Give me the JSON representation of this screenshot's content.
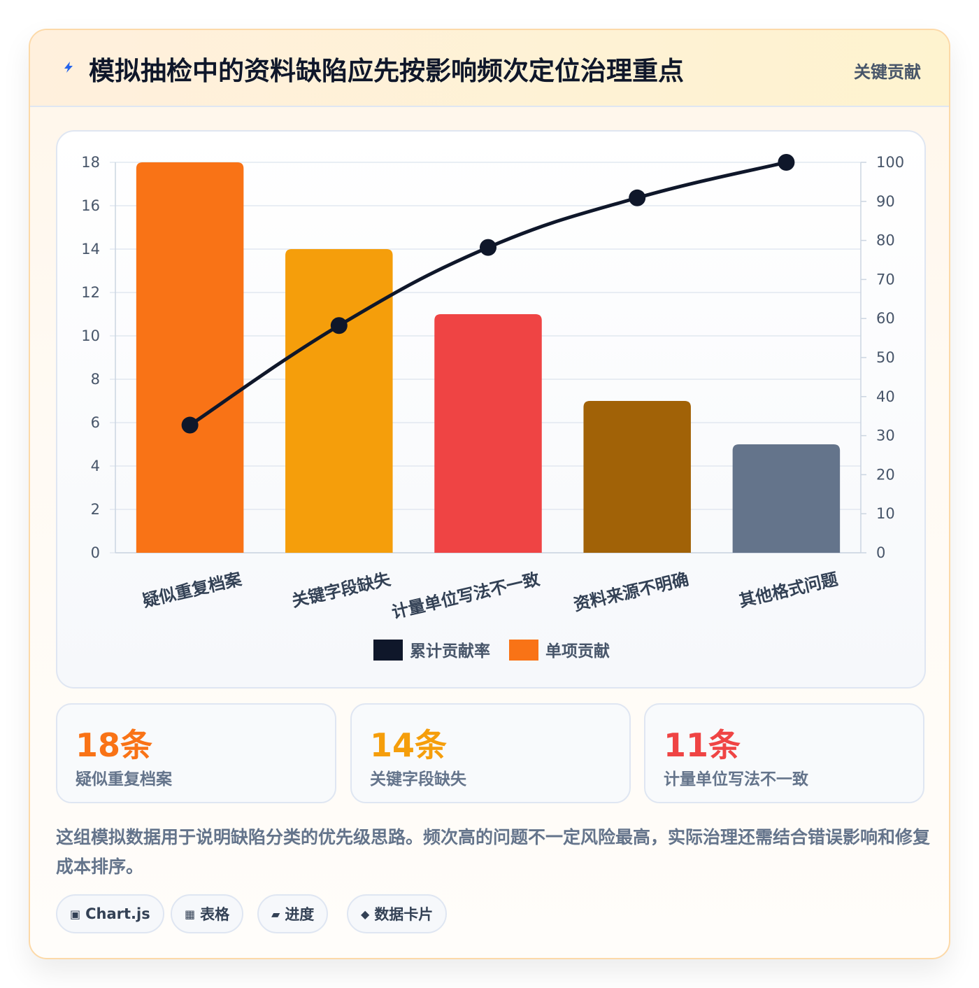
{
  "header": {
    "title": "模拟抽检中的资料缺陷应先按影响频次定位治理重点",
    "badge": "关键贡献",
    "icon": "lightning-icon"
  },
  "chart_data": {
    "type": "bar",
    "categories": [
      "疑似重复档案",
      "关键字段缺失",
      "计量单位写法不一致",
      "资料来源不明确",
      "其他格式问题"
    ],
    "series": [
      {
        "name": "单项贡献",
        "type": "bar",
        "axis": "left",
        "values": [
          18,
          14,
          11,
          7,
          5
        ],
        "colors": [
          "#f97316",
          "#f59e0b",
          "#ef4444",
          "#a16207",
          "#64748b"
        ]
      },
      {
        "name": "累计贡献率",
        "type": "line",
        "axis": "right",
        "values": [
          32.7,
          58.2,
          78.2,
          90.9,
          100
        ],
        "color": "#0f172a"
      }
    ],
    "y_left": {
      "min": 0,
      "max": 18,
      "ticks": [
        "0",
        "2",
        "4",
        "6",
        "8",
        "10",
        "12",
        "14",
        "16",
        "18"
      ]
    },
    "y_right": {
      "min": 0,
      "max": 100,
      "ticks": [
        "0",
        "10",
        "20",
        "30",
        "40",
        "50",
        "60",
        "70",
        "80",
        "90",
        "100"
      ]
    },
    "legend": [
      {
        "label": "累计贡献率",
        "color": "#0f172a"
      },
      {
        "label": "单项贡献",
        "color": "#f97316"
      }
    ],
    "legend_position": "bottom",
    "grid": true
  },
  "stats": [
    {
      "value": "18条",
      "label": "疑似重复档案",
      "color": "#f97316"
    },
    {
      "value": "14条",
      "label": "关键字段缺失",
      "color": "#f59e0b"
    },
    {
      "value": "11条",
      "label": "计量单位写法不一致",
      "color": "#ef4444"
    }
  ],
  "note": "这组模拟数据用于说明缺陷分类的优先级思路。频次高的问题不一定风险最高，实际治理还需结合错误影响和修复成本排序。",
  "tags": [
    {
      "icon": "chip-icon",
      "label": "Chart.js"
    },
    {
      "icon": "table-icon",
      "label": "表格"
    },
    {
      "icon": "progress-icon",
      "label": "进度"
    },
    {
      "icon": "diamond-icon",
      "label": "数据卡片"
    }
  ]
}
